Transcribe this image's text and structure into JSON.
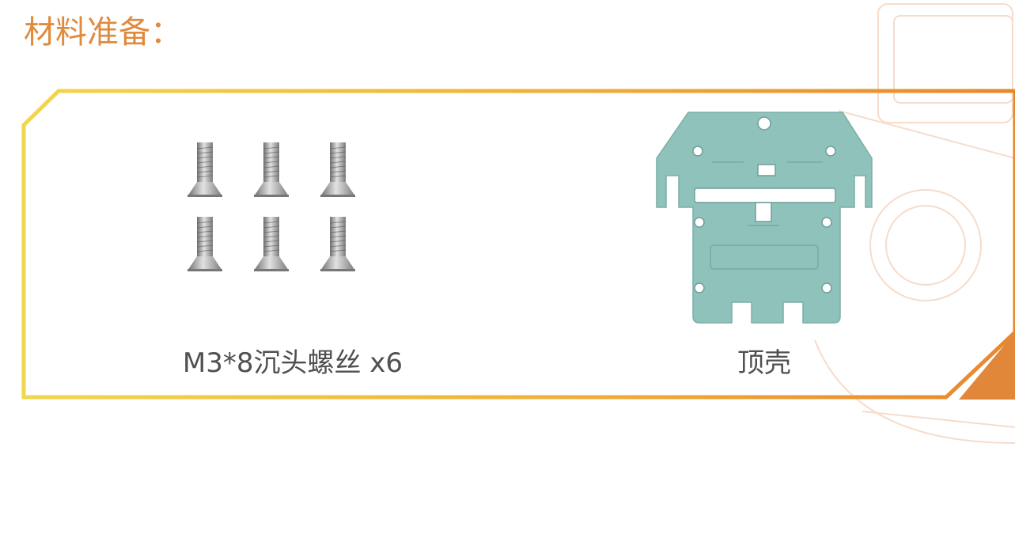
{
  "header": {
    "title": "材料准备："
  },
  "table": {
    "items": [
      {
        "label": "M3*8沉头螺丝 x6"
      },
      {
        "label": "顶壳"
      }
    ]
  }
}
